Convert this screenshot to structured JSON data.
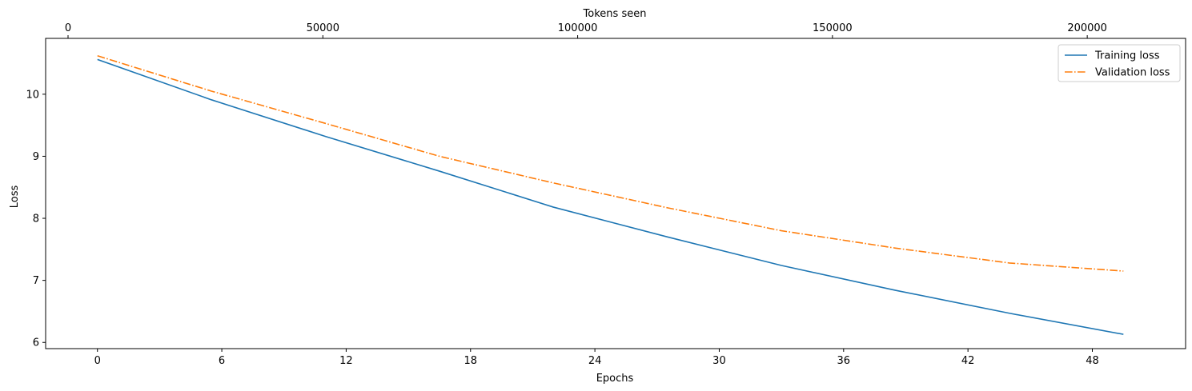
{
  "chart_data": {
    "type": "line",
    "title": "",
    "xlabel": "Epochs",
    "ylabel": "Loss",
    "top_xlabel": "Tokens seen",
    "xlim": [
      -2.5,
      52.5
    ],
    "ylim": [
      5.9,
      10.9
    ],
    "xticks": [
      0,
      6,
      12,
      18,
      24,
      30,
      36,
      42,
      48
    ],
    "yticks": [
      6,
      7,
      8,
      9,
      10
    ],
    "top_xlim": [
      -4400,
      219300
    ],
    "top_xticks": [
      0,
      50000,
      100000,
      150000,
      200000
    ],
    "x": [
      0,
      5.5,
      11,
      16.5,
      22,
      27.5,
      33,
      38.5,
      44,
      49.5
    ],
    "series": [
      {
        "name": "Training loss",
        "color": "#1f77b4",
        "style": "solid",
        "values": [
          10.56,
          9.91,
          9.32,
          8.76,
          8.18,
          7.7,
          7.24,
          6.84,
          6.47,
          6.13
        ]
      },
      {
        "name": "Validation loss",
        "color": "#ff7f0e",
        "style": "dashdot",
        "values": [
          10.62,
          10.05,
          9.53,
          9.0,
          8.57,
          8.17,
          7.8,
          7.52,
          7.28,
          7.15
        ]
      }
    ],
    "legend_position": "top-right",
    "grid": false
  }
}
